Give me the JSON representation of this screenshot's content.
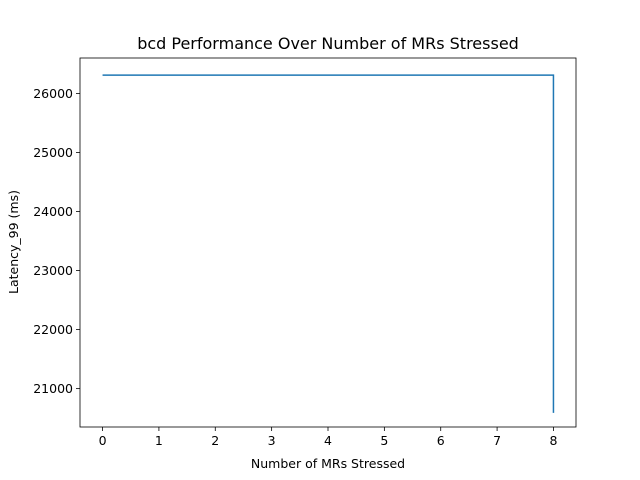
{
  "chart_data": {
    "type": "line",
    "title": "bcd Performance Over Number of MRs Stressed",
    "xlabel": "Number of MRs Stressed",
    "ylabel": "Latency_99 (ms)",
    "xlim": [
      -0.4,
      8.4
    ],
    "ylim": [
      20350,
      26600
    ],
    "x_ticks": [
      0,
      1,
      2,
      3,
      4,
      5,
      6,
      7,
      8
    ],
    "y_ticks": [
      21000,
      22000,
      23000,
      24000,
      25000,
      26000
    ],
    "grid": false,
    "series": [
      {
        "color": "#1f77b4",
        "x": [
          0,
          1,
          2,
          3,
          4,
          5,
          6,
          7,
          8,
          8
        ],
        "y": [
          26310,
          26310,
          26310,
          26310,
          26310,
          26310,
          26310,
          26310,
          26310,
          20590
        ]
      }
    ]
  }
}
